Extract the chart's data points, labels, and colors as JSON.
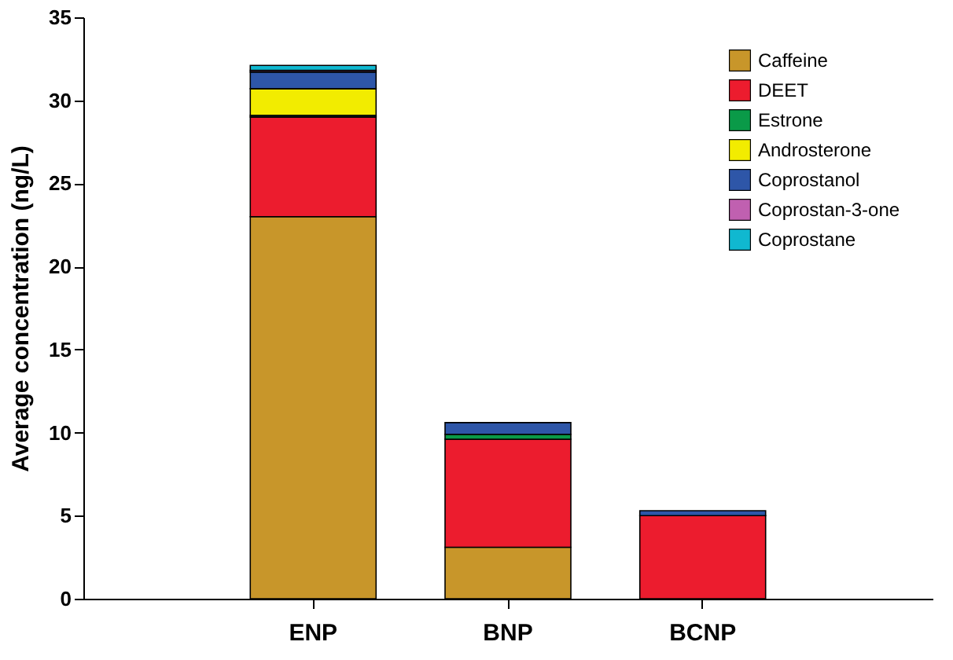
{
  "chart_data": {
    "type": "bar",
    "stacked": true,
    "ylabel": "Average concentration (ng/L)",
    "categories": [
      "ENP",
      "BNP",
      "BCNP"
    ],
    "series": [
      {
        "name": "Caffeine",
        "color": "#c8962a",
        "values": [
          23,
          3.1,
          null
        ]
      },
      {
        "name": "DEET",
        "color": "#ec1c2e",
        "values": [
          6.0,
          6.5,
          5.0
        ]
      },
      {
        "name": "Estrone",
        "color": "#0a9a48",
        "values": [
          0.1,
          0.3,
          null
        ]
      },
      {
        "name": "Androsterone",
        "color": "#f2ec00",
        "values": [
          1.6,
          null,
          null
        ]
      },
      {
        "name": "Coprostanol",
        "color": "#2e56a8",
        "values": [
          1.0,
          0.7,
          0.3
        ]
      },
      {
        "name": "Coprostan-3-one",
        "color": "#c060b0",
        "values": [
          0.1,
          null,
          null
        ]
      },
      {
        "name": "Coprostane",
        "color": "#10b8d0",
        "values": [
          0.3,
          null,
          null
        ]
      }
    ],
    "ylim": [
      0,
      35
    ],
    "yticks": [
      0,
      5,
      10,
      15,
      20,
      25,
      30,
      35
    ],
    "grid": false,
    "legend": "top right"
  }
}
